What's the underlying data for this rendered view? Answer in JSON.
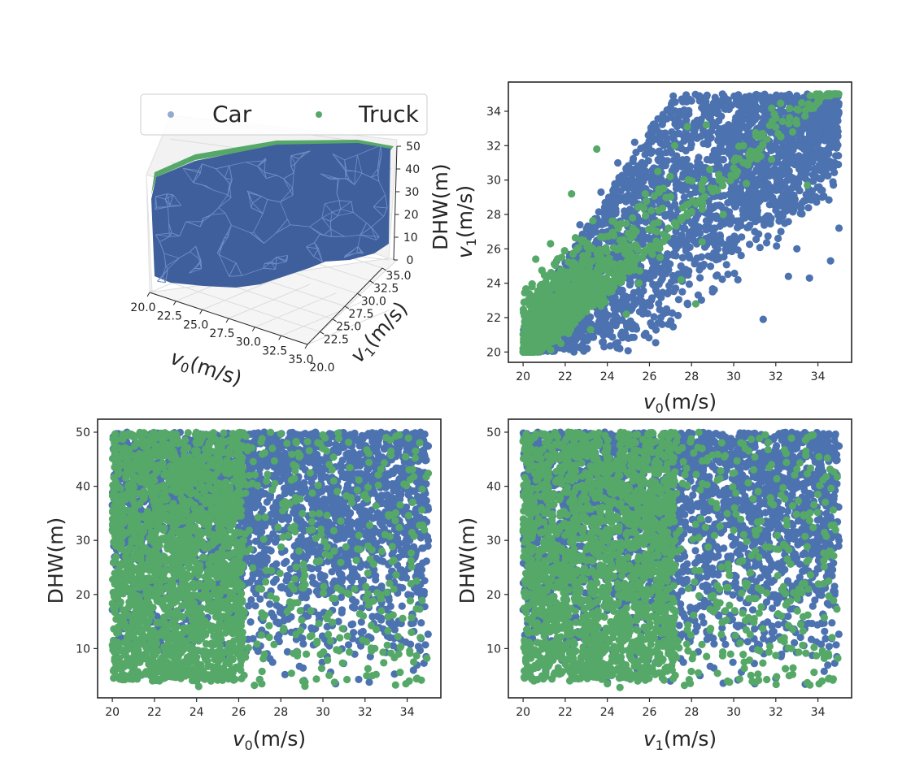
{
  "colors": {
    "car": "#4c72b0",
    "truck": "#55a868",
    "text": "#262626",
    "pane": "#f2f2f2",
    "grid": "#dcdcdc"
  },
  "legend": {
    "entries": [
      "Car",
      "Truck"
    ],
    "placement": "top"
  },
  "chart_data": [
    {
      "type": "surface3d",
      "panel": "top-left",
      "series": [
        {
          "name": "Car",
          "kind": "triangulated surface",
          "x_range": [
            20,
            35
          ],
          "y_range": [
            20,
            35
          ],
          "z_range": [
            0,
            50
          ]
        },
        {
          "name": "Truck",
          "kind": "triangulated surface",
          "x_range": [
            20,
            35
          ],
          "y_range": [
            20,
            35
          ],
          "z_range": [
            0,
            50
          ]
        }
      ],
      "xlabel": "v0(m/s)",
      "ylabel": "v1(m/s)",
      "zlabel": "DHW(m)",
      "xlim": [
        20,
        35
      ],
      "ylim": [
        20,
        35
      ],
      "zlim": [
        0,
        50
      ],
      "xticks": [
        "20.0",
        "22.5",
        "25.0",
        "27.5",
        "30.0",
        "32.5",
        "35.0"
      ],
      "yticks": [
        "20.0",
        "22.5",
        "25.0",
        "27.5",
        "30.0",
        "32.5",
        "35.0"
      ],
      "zticks": [
        "0",
        "10",
        "20",
        "30",
        "40",
        "50"
      ]
    },
    {
      "type": "scatter",
      "panel": "top-right",
      "series": [
        {
          "name": "Car",
          "points": [
            [
              20.2,
              20.3
            ],
            [
              21.5,
              21.2
            ],
            [
              22.4,
              21.0
            ],
            [
              23.8,
              20.6
            ],
            [
              25.0,
              20.8
            ],
            [
              26.6,
              21.6
            ],
            [
              27.8,
              22.8
            ],
            [
              29.0,
              23.5
            ],
            [
              30.2,
              24.2
            ],
            [
              31.4,
              21.9
            ],
            [
              32.6,
              24.4
            ],
            [
              33.6,
              24.3
            ],
            [
              34.6,
              25.3
            ],
            [
              35.0,
              27.2
            ],
            [
              34.8,
              31.0
            ],
            [
              34.9,
              34.9
            ],
            [
              33.0,
              34.9
            ],
            [
              31.3,
              34.8
            ],
            [
              29.5,
              34.7
            ],
            [
              28.0,
              34.6
            ],
            [
              27.0,
              34.2
            ],
            [
              26.2,
              33.0
            ],
            [
              25.3,
              32.2
            ],
            [
              24.5,
              31.0
            ],
            [
              23.7,
              29.3
            ],
            [
              22.7,
              27.4
            ],
            [
              21.6,
              25.3
            ],
            [
              20.8,
              23.0
            ],
            [
              28.2,
              30.1
            ],
            [
              30.4,
              29.0
            ],
            [
              32.2,
              28.5
            ],
            [
              33.4,
              30.1
            ],
            [
              26.5,
              27.5
            ],
            [
              29.2,
              26.5
            ],
            [
              24.8,
              25.5
            ],
            [
              23.0,
              23.6
            ],
            [
              27.5,
              25.0
            ],
            [
              31.0,
              27.0
            ],
            [
              33.0,
              26.0
            ],
            [
              34.2,
              29.0
            ],
            [
              32.8,
              32.5
            ],
            [
              30.6,
              33.0
            ],
            [
              28.5,
              33.1
            ]
          ]
        },
        {
          "name": "Truck",
          "points": [
            [
              20.0,
              20.2
            ],
            [
              20.5,
              20.8
            ],
            [
              21.2,
              21.5
            ],
            [
              22.0,
              22.2
            ],
            [
              22.7,
              23.0
            ],
            [
              23.3,
              24.1
            ],
            [
              24.0,
              25.2
            ],
            [
              24.6,
              26.5
            ],
            [
              25.2,
              27.8
            ],
            [
              25.8,
              29.2
            ],
            [
              26.4,
              30.5
            ],
            [
              27.2,
              32.0
            ],
            [
              27.8,
              33.1
            ],
            [
              28.7,
              33.2
            ],
            [
              23.5,
              31.8
            ],
            [
              22.3,
              29.2
            ],
            [
              21.3,
              26.3
            ],
            [
              20.6,
              25.4
            ],
            [
              25.5,
              24.0
            ],
            [
              26.5,
              25.5
            ],
            [
              27.5,
              24.2
            ],
            [
              28.5,
              26.4
            ],
            [
              29.5,
              28.0
            ],
            [
              30.6,
              29.8
            ],
            [
              31.8,
              31.2
            ],
            [
              32.8,
              32.8
            ],
            [
              33.8,
              34.3
            ],
            [
              34.6,
              34.9
            ],
            [
              32.0,
              33.6
            ],
            [
              30.0,
              30.7
            ],
            [
              33.5,
              29.7
            ],
            [
              26.9,
              27.2
            ],
            [
              24.9,
              22.2
            ],
            [
              23.2,
              21.3
            ],
            [
              21.8,
              20.5
            ],
            [
              28.2,
              22.8
            ]
          ]
        }
      ],
      "xlabel": "v0(m/s)",
      "ylabel": "v1(m/s)",
      "xlim": [
        19.3,
        35.6
      ],
      "ylim": [
        19.4,
        35.7
      ],
      "xticks": [
        "20",
        "22",
        "24",
        "26",
        "28",
        "30",
        "32",
        "34"
      ],
      "yticks": [
        "20",
        "22",
        "24",
        "26",
        "28",
        "30",
        "32",
        "34"
      ]
    },
    {
      "type": "scatter",
      "panel": "bottom-left",
      "series": [
        {
          "name": "Car",
          "points": [
            [
              20.1,
              5.8
            ],
            [
              21.0,
              5.2
            ],
            [
              22.5,
              4.6
            ],
            [
              24.0,
              4.0
            ],
            [
              25.5,
              4.8
            ],
            [
              27.0,
              4.3
            ],
            [
              28.2,
              5.2
            ],
            [
              29.1,
              4.1
            ],
            [
              30.6,
              3.5
            ],
            [
              31.7,
              4.3
            ],
            [
              32.2,
              3.8
            ],
            [
              33.4,
              5.3
            ],
            [
              34.3,
              6.0
            ],
            [
              34.9,
              8.5
            ],
            [
              34.8,
              20.0
            ],
            [
              35.0,
              30.0
            ],
            [
              34.9,
              42.0
            ],
            [
              34.7,
              49.3
            ],
            [
              33.0,
              49.7
            ],
            [
              31.0,
              49.8
            ],
            [
              29.0,
              49.5
            ],
            [
              27.5,
              49.8
            ],
            [
              26.5,
              49.6
            ],
            [
              29.8,
              20.0
            ],
            [
              31.8,
              10.5
            ],
            [
              33.2,
              15.2
            ],
            [
              30.6,
              40.0
            ],
            [
              32.8,
              30.0
            ],
            [
              28.5,
              13.0
            ],
            [
              27.8,
              35.0
            ]
          ]
        },
        {
          "name": "Truck",
          "points": [
            [
              20.1,
              48.0
            ],
            [
              20.6,
              49.5
            ],
            [
              21.5,
              49.9
            ],
            [
              22.5,
              49.9
            ],
            [
              23.6,
              49.9
            ],
            [
              24.8,
              49.9
            ],
            [
              26.0,
              49.9
            ],
            [
              20.2,
              40.0
            ],
            [
              20.2,
              30.0
            ],
            [
              20.2,
              20.0
            ],
            [
              20.3,
              13.0
            ],
            [
              21.0,
              7.8
            ],
            [
              22.0,
              6.5
            ],
            [
              23.0,
              5.5
            ],
            [
              23.8,
              4.1
            ],
            [
              24.1,
              3.0
            ],
            [
              24.6,
              4.8
            ],
            [
              25.6,
              5.6
            ],
            [
              26.3,
              9.0
            ],
            [
              26.2,
              30.0
            ],
            [
              26.5,
              42.0
            ],
            [
              27.1,
              3.5
            ],
            [
              27.6,
              47.0
            ],
            [
              28.2,
              36.0
            ],
            [
              28.8,
              18.5
            ],
            [
              29.5,
              32.0
            ],
            [
              30.3,
              44.0
            ],
            [
              30.8,
              12.0
            ],
            [
              31.5,
              21.0
            ],
            [
              32.0,
              38.5
            ],
            [
              32.8,
              28.0
            ],
            [
              33.6,
              9.0
            ],
            [
              34.2,
              13.0
            ],
            [
              34.6,
              17.3
            ],
            [
              34.4,
              46.5
            ],
            [
              35.0,
              42.4
            ],
            [
              33.0,
              49.0
            ],
            [
              30.0,
              49.5
            ],
            [
              28.0,
              49.7
            ]
          ]
        }
      ],
      "xlabel": "v0(m/s)",
      "ylabel": "DHW(m)",
      "xlim": [
        19.3,
        35.6
      ],
      "ylim": [
        0.9,
        52.4
      ],
      "xticks": [
        "20",
        "22",
        "24",
        "26",
        "28",
        "30",
        "32",
        "34"
      ],
      "yticks": [
        "10",
        "20",
        "30",
        "40",
        "50"
      ]
    },
    {
      "type": "scatter",
      "panel": "bottom-right",
      "series": [
        {
          "name": "Car",
          "points": [
            [
              20.3,
              6.0
            ],
            [
              21.0,
              5.0
            ],
            [
              22.5,
              4.5
            ],
            [
              24.0,
              3.8
            ],
            [
              25.5,
              4.5
            ],
            [
              27.0,
              4.0
            ],
            [
              28.4,
              5.0
            ],
            [
              29.5,
              3.6
            ],
            [
              30.2,
              4.2
            ],
            [
              31.0,
              3.5
            ],
            [
              32.0,
              4.5
            ],
            [
              33.4,
              3.4
            ],
            [
              34.3,
              5.8
            ],
            [
              34.9,
              8.5
            ],
            [
              34.8,
              20.0
            ],
            [
              35.0,
              30.0
            ],
            [
              34.9,
              42.0
            ],
            [
              34.8,
              49.3
            ],
            [
              33.0,
              49.7
            ],
            [
              31.0,
              49.8
            ],
            [
              29.0,
              49.5
            ],
            [
              27.5,
              49.8
            ],
            [
              29.5,
              15.0
            ],
            [
              32.5,
              10.0
            ],
            [
              31.8,
              25.0
            ],
            [
              33.5,
              37.0
            ],
            [
              30.7,
              44.5
            ],
            [
              28.0,
              30.0
            ]
          ]
        },
        {
          "name": "Truck",
          "points": [
            [
              20.0,
              48.3
            ],
            [
              20.6,
              49.6
            ],
            [
              21.5,
              49.9
            ],
            [
              22.5,
              49.9
            ],
            [
              23.6,
              49.9
            ],
            [
              24.8,
              49.9
            ],
            [
              26.0,
              49.9
            ],
            [
              27.0,
              49.9
            ],
            [
              20.2,
              40.0
            ],
            [
              20.2,
              30.0
            ],
            [
              20.2,
              20.0
            ],
            [
              20.3,
              13.0
            ],
            [
              20.7,
              6.5
            ],
            [
              21.5,
              5.5
            ],
            [
              22.8,
              5.0
            ],
            [
              24.0,
              3.5
            ],
            [
              24.6,
              2.8
            ],
            [
              25.5,
              5.2
            ],
            [
              26.4,
              8.5
            ],
            [
              26.8,
              30.0
            ],
            [
              27.1,
              42.0
            ],
            [
              27.8,
              13.5
            ],
            [
              28.5,
              47.0
            ],
            [
              29.2,
              36.0
            ],
            [
              29.8,
              18.0
            ],
            [
              30.5,
              7.5
            ],
            [
              31.2,
              32.0
            ],
            [
              31.8,
              44.0
            ],
            [
              32.4,
              12.0
            ],
            [
              33.1,
              21.0
            ],
            [
              33.5,
              3.7
            ],
            [
              34.0,
              38.5
            ],
            [
              34.6,
              28.0
            ],
            [
              34.3,
              8.2
            ],
            [
              34.9,
              17.3
            ],
            [
              33.5,
              49.0
            ],
            [
              31.5,
              49.5
            ]
          ]
        }
      ],
      "xlabel": "v1(m/s)",
      "ylabel": "DHW(m)",
      "xlim": [
        19.3,
        35.6
      ],
      "ylim": [
        0.9,
        52.4
      ],
      "xticks": [
        "20",
        "22",
        "24",
        "26",
        "28",
        "30",
        "32",
        "34"
      ],
      "yticks": [
        "10",
        "20",
        "30",
        "40",
        "50"
      ]
    }
  ]
}
